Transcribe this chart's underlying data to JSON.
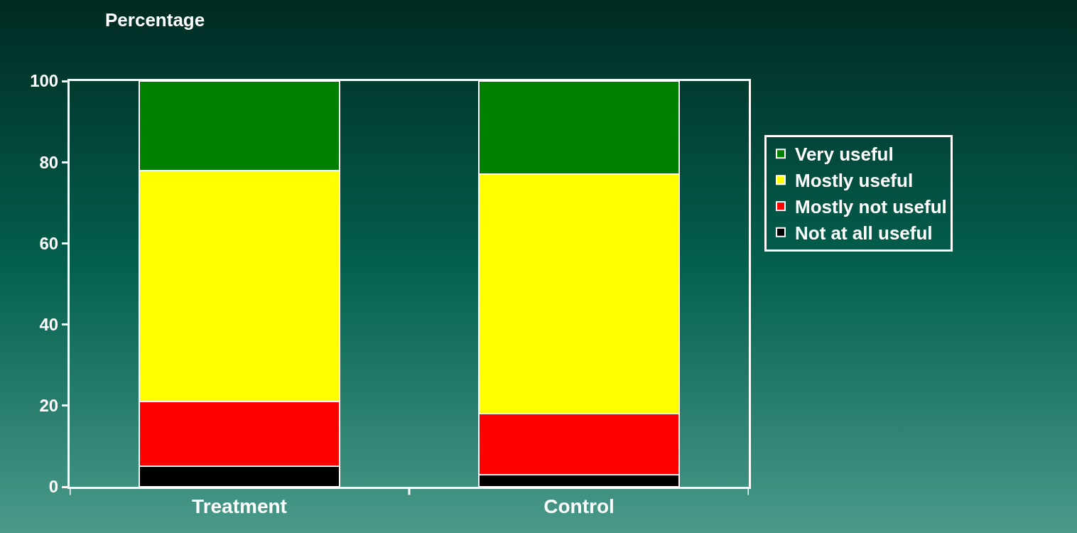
{
  "chart_data": {
    "type": "bar",
    "stacked": true,
    "ylabel": "Percentage",
    "categories": [
      "Treatment",
      "Control"
    ],
    "series": [
      {
        "name": "Not at all useful",
        "color": "#000000",
        "values": [
          5,
          3
        ]
      },
      {
        "name": "Mostly not useful",
        "color": "#ff0000",
        "values": [
          16,
          15
        ]
      },
      {
        "name": "Mostly useful",
        "color": "#ffff00",
        "values": [
          57,
          59
        ]
      },
      {
        "name": "Very useful",
        "color": "#008000",
        "values": [
          22,
          23
        ]
      }
    ],
    "ylim": [
      0,
      100
    ],
    "yticks": [
      0,
      20,
      40,
      60,
      80,
      100
    ],
    "grid": false,
    "legend": "right"
  }
}
